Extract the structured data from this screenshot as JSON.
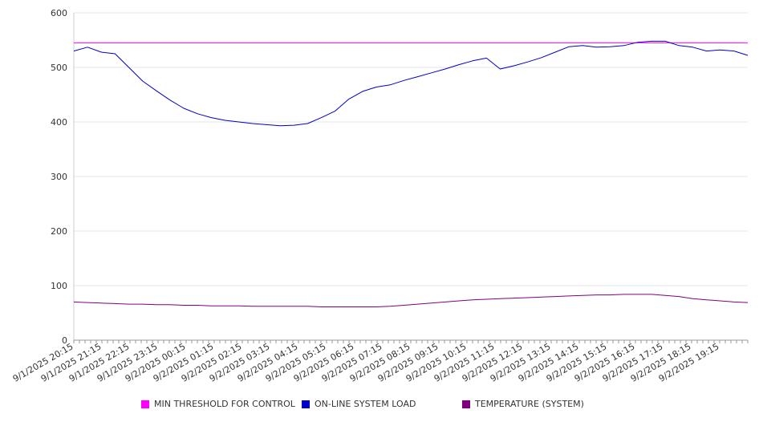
{
  "chart_data": {
    "type": "line",
    "title": "",
    "xlabel": "",
    "ylabel": "",
    "ylim": [
      0,
      600
    ],
    "y_ticks": [
      0,
      100,
      200,
      300,
      400,
      500,
      600
    ],
    "grid": true,
    "legend_position": "bottom",
    "x_tick_labels": [
      "9/1/2025 20:15",
      "9/1/2025 21:15",
      "9/1/2025 22:15",
      "9/1/2025 23:15",
      "9/2/2025 00:15",
      "9/2/2025 01:15",
      "9/2/2025 02:15",
      "9/2/2025 03:15",
      "9/2/2025 04:15",
      "9/2/2025 05:15",
      "9/2/2025 06:15",
      "9/2/2025 07:15",
      "9/2/2025 08:15",
      "9/2/2025 09:15",
      "9/2/2025 10:15",
      "9/2/2025 11:15",
      "9/2/2025 12:15",
      "9/2/2025 13:15",
      "9/2/2025 14:15",
      "9/2/2025 15:15",
      "9/2/2025 16:15",
      "9/2/2025 17:15",
      "9/2/2025 18:15",
      "9/2/2025 19:15"
    ],
    "x": [
      "20:15",
      "20:45",
      "21:15",
      "21:45",
      "22:15",
      "22:45",
      "23:15",
      "23:45",
      "00:15",
      "00:45",
      "01:15",
      "01:45",
      "02:15",
      "02:45",
      "03:15",
      "03:45",
      "04:15",
      "04:45",
      "05:15",
      "05:45",
      "06:15",
      "06:45",
      "07:15",
      "07:45",
      "08:15",
      "08:45",
      "09:15",
      "09:45",
      "10:15",
      "10:45",
      "11:00",
      "11:15",
      "11:45",
      "12:15",
      "12:45",
      "13:15",
      "13:45",
      "14:15",
      "14:45",
      "15:15",
      "15:45",
      "16:15",
      "16:45",
      "17:15",
      "17:45",
      "18:15",
      "18:45",
      "19:15",
      "19:45",
      "20:00"
    ],
    "series": [
      {
        "name": "MIN THRESHOLD FOR CONTROL",
        "color": "#ff00ff",
        "values": [
          545,
          545,
          545,
          545,
          545,
          545,
          545,
          545,
          545,
          545,
          545,
          545,
          545,
          545,
          545,
          545,
          545,
          545,
          545,
          545,
          545,
          545,
          545,
          545,
          545,
          545,
          545,
          545,
          545,
          545,
          545,
          545,
          545,
          545,
          545,
          545,
          545,
          545,
          545,
          545,
          545,
          545,
          545,
          545,
          545,
          545,
          545,
          545,
          545,
          545
        ]
      },
      {
        "name": "ON-LINE SYSTEM LOAD",
        "color": "#0000cc",
        "values": [
          530,
          537,
          528,
          525,
          500,
          475,
          457,
          440,
          425,
          415,
          408,
          403,
          400,
          397,
          395,
          393,
          394,
          397,
          408,
          420,
          442,
          456,
          464,
          468,
          476,
          483,
          490,
          497,
          505,
          512,
          517,
          497,
          503,
          510,
          518,
          528,
          538,
          540,
          537,
          538,
          540,
          546,
          548,
          548,
          540,
          537,
          530,
          532,
          530,
          522
        ]
      },
      {
        "name": "TEMPERATURE (SYSTEM)",
        "color": "#800080",
        "values": [
          70,
          69,
          68,
          67,
          66,
          66,
          65,
          65,
          64,
          64,
          63,
          63,
          63,
          62,
          62,
          62,
          62,
          62,
          61,
          61,
          61,
          61,
          61,
          62,
          64,
          66,
          68,
          70,
          72,
          74,
          75,
          76,
          77,
          78,
          79,
          80,
          81,
          82,
          83,
          83,
          84,
          84,
          84,
          82,
          80,
          76,
          74,
          72,
          70,
          69
        ]
      }
    ]
  }
}
